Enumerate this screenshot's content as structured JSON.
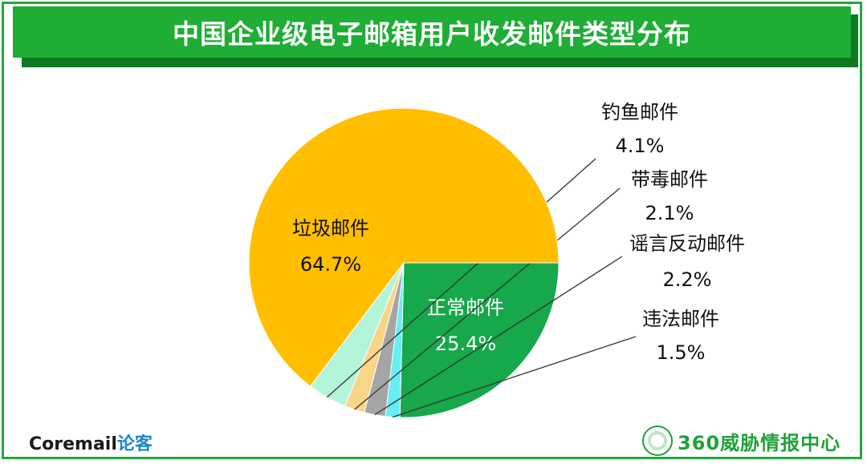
{
  "title": "中国企业级电子邮箱用户收发邮件类型分布",
  "chart_data": {
    "type": "pie",
    "categories": [
      "正常邮件",
      "违法邮件",
      "谣言反动邮件",
      "带毒邮件",
      "钓鱼邮件",
      "垃圾邮件"
    ],
    "values": [
      25.4,
      1.5,
      2.2,
      2.1,
      4.1,
      64.7
    ],
    "labels": [
      "25.4%",
      "1.5%",
      "2.2%",
      "2.1%",
      "4.1%",
      "64.7%"
    ],
    "colors": [
      "#16a84b",
      "#66eef3",
      "#a5a5a5",
      "#f8d587",
      "#b3f5d8",
      "#ffbf00"
    ],
    "start": "3 o'clock, clockwise"
  },
  "footer": {
    "left_brand": "Coremail",
    "left_accent": "论客",
    "right_brand": "360威胁情报中心"
  },
  "icons": {
    "right_logo": "globe-laurel-icon"
  }
}
